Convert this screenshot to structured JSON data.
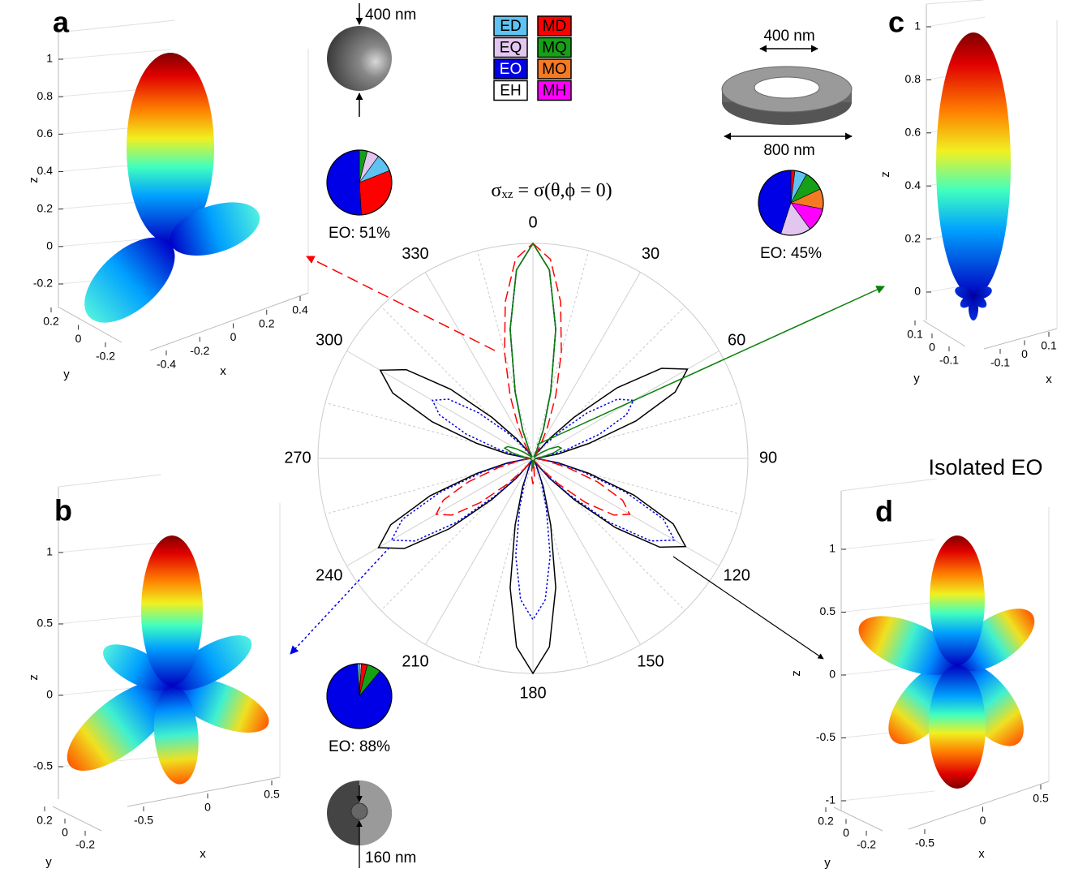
{
  "chart_data": [
    {
      "type": "polar",
      "title_symbol": "σ",
      "title_subscript": "xz",
      "title_rest": " = σ(θ,ϕ = 0)",
      "rlim": [
        0,
        1
      ],
      "thetaticks": [
        0,
        30,
        60,
        90,
        120,
        150,
        180,
        210,
        240,
        270,
        300,
        330
      ],
      "theta": [
        0,
        5,
        10,
        15,
        20,
        25,
        30,
        35,
        40,
        45,
        50,
        55,
        60,
        65,
        70,
        75,
        80,
        85,
        90,
        95,
        100,
        105,
        110,
        115,
        120,
        125,
        130,
        135,
        140,
        145,
        150,
        155,
        160,
        165,
        170,
        175,
        180,
        185,
        190,
        195,
        200,
        205,
        210,
        215,
        220,
        225,
        230,
        235,
        240,
        245,
        250,
        255,
        260,
        265,
        270,
        275,
        280,
        285,
        290,
        295,
        300,
        305,
        310,
        315,
        320,
        325,
        330,
        335,
        340,
        345,
        350,
        355
      ],
      "series": [
        {
          "color": "#000000",
          "dash": "solid",
          "values": [
            1,
            0.88,
            0.61,
            0.32,
            0.14,
            0.04,
            0.01,
            0.03,
            0.12,
            0.27,
            0.51,
            0.73,
            0.83,
            0.73,
            0.51,
            0.27,
            0.12,
            0.03,
            0.01,
            0.03,
            0.12,
            0.27,
            0.5,
            0.72,
            0.82,
            0.72,
            0.5,
            0.27,
            0.12,
            0.04,
            0.01,
            0.04,
            0.14,
            0.32,
            0.61,
            0.88,
            1,
            0.88,
            0.61,
            0.32,
            0.14,
            0.04,
            0.01,
            0.03,
            0.12,
            0.27,
            0.51,
            0.73,
            0.83,
            0.73,
            0.51,
            0.27,
            0.12,
            0.03,
            0.01,
            0.03,
            0.12,
            0.27,
            0.5,
            0.72,
            0.82,
            0.72,
            0.5,
            0.27,
            0.12,
            0.04,
            0.01,
            0.04,
            0.14,
            0.32,
            0.61,
            0.88
          ]
        },
        {
          "color": "#0000e6",
          "dash": "dotted",
          "values": [
            1,
            0.88,
            0.61,
            0.32,
            0.14,
            0.04,
            0.01,
            0.02,
            0.08,
            0.17,
            0.33,
            0.48,
            0.54,
            0.48,
            0.33,
            0.17,
            0.08,
            0.02,
            0.01,
            0.03,
            0.11,
            0.24,
            0.46,
            0.67,
            0.76,
            0.67,
            0.46,
            0.24,
            0.11,
            0.03,
            0.01,
            0.03,
            0.11,
            0.24,
            0.46,
            0.66,
            0.75,
            0.66,
            0.46,
            0.24,
            0.11,
            0.03,
            0.01,
            0.03,
            0.11,
            0.24,
            0.46,
            0.67,
            0.76,
            0.67,
            0.46,
            0.24,
            0.11,
            0.03,
            0.01,
            0.02,
            0.08,
            0.17,
            0.33,
            0.48,
            0.54,
            0.48,
            0.33,
            0.17,
            0.08,
            0.02,
            0.01,
            0.04,
            0.14,
            0.32,
            0.61,
            0.88
          ]
        },
        {
          "color": "#ff0000",
          "dash": "dashed",
          "values": [
            1,
            0.93,
            0.74,
            0.51,
            0.31,
            0.16,
            0.07,
            0.03,
            0.01,
            0.01,
            0.01,
            0.01,
            0.01,
            0.01,
            0.01,
            0.01,
            0.01,
            0.01,
            0.01,
            0.02,
            0.07,
            0.17,
            0.32,
            0.46,
            0.52,
            0.46,
            0.32,
            0.17,
            0.07,
            0.02,
            0.01,
            0.01,
            0.01,
            0.01,
            0.02,
            0.08,
            0.12,
            0.08,
            0.02,
            0.01,
            0.01,
            0.01,
            0.01,
            0.02,
            0.07,
            0.17,
            0.32,
            0.46,
            0.52,
            0.46,
            0.32,
            0.17,
            0.07,
            0.02,
            0.01,
            0.01,
            0.01,
            0.01,
            0.01,
            0.01,
            0.01,
            0.01,
            0.01,
            0.01,
            0.01,
            0.03,
            0.07,
            0.16,
            0.31,
            0.51,
            0.74,
            0.93
          ]
        },
        {
          "color": "#0a800a",
          "dash": "solid",
          "values": [
            1,
            0.88,
            0.61,
            0.32,
            0.14,
            0.04,
            0.01,
            0.01,
            0.01,
            0.01,
            0.02,
            0.05,
            0.09,
            0.13,
            0.14,
            0.1,
            0.05,
            0.02,
            0.01,
            0.01,
            0.01,
            0.01,
            0.01,
            0.01,
            0.01,
            0.01,
            0.01,
            0.01,
            0.01,
            0.01,
            0.01,
            0.01,
            0.01,
            0.01,
            0.01,
            0.03,
            0.04,
            0.03,
            0.01,
            0.01,
            0.01,
            0.01,
            0.01,
            0.01,
            0.01,
            0.01,
            0.01,
            0.01,
            0.01,
            0.01,
            0.01,
            0.01,
            0.01,
            0.01,
            0.01,
            0.02,
            0.05,
            0.1,
            0.14,
            0.13,
            0.09,
            0.05,
            0.02,
            0.01,
            0.01,
            0.01,
            0.01,
            0.04,
            0.14,
            0.32,
            0.61,
            0.88
          ]
        }
      ]
    },
    {
      "type": "pie",
      "label": "EO: 51%",
      "categories": [
        "MQ",
        "EQ",
        "ED",
        "MD",
        "EO"
      ],
      "values": [
        4,
        6,
        9,
        30,
        51
      ]
    },
    {
      "type": "pie",
      "label": "EO: 88%",
      "categories": [
        "EQ",
        "MD",
        "MQ",
        "EO",
        "ED"
      ],
      "values": [
        1,
        3,
        7,
        88,
        1
      ]
    },
    {
      "type": "pie",
      "label": "EO: 45%",
      "categories": [
        "MD",
        "ED",
        "MQ",
        "MO",
        "MH",
        "EQ",
        "EO"
      ],
      "values": [
        2,
        6,
        10,
        10,
        12,
        15,
        45
      ]
    }
  ],
  "legend": [
    {
      "name": "ED",
      "color": "#5ec3f2"
    },
    {
      "name": "MD",
      "color": "#ff0000"
    },
    {
      "name": "EQ",
      "color": "#e2c6f0"
    },
    {
      "name": "MQ",
      "color": "#16a016"
    },
    {
      "name": "EO",
      "color": "#0000e6"
    },
    {
      "name": "MO",
      "color": "#f57a24"
    },
    {
      "name": "EH",
      "color": "#ffffff"
    },
    {
      "name": "MH",
      "color": "#ff00ff"
    }
  ],
  "annotations": {
    "sphere": "400 nm",
    "ring_inner": "400 nm",
    "ring_outer": "800 nm",
    "core": "160 nm"
  },
  "panels": [
    {
      "label": "a",
      "zticks": [
        -0.2,
        0,
        0.2,
        0.4,
        0.6,
        0.8,
        1
      ],
      "xticks": [
        -0.4,
        -0.2,
        0,
        0.2,
        0.4
      ],
      "yticks": [
        -0.2,
        0,
        0.2
      ],
      "xlabel": "x",
      "ylabel": "y",
      "zlabel": "z"
    },
    {
      "label": "b",
      "zticks": [
        -0.5,
        0,
        0.5,
        1
      ],
      "xticks": [
        -0.5,
        0,
        0.5
      ],
      "yticks": [
        -0.2,
        0,
        0.2
      ],
      "xlabel": "x",
      "ylabel": "y",
      "zlabel": "z"
    },
    {
      "label": "c",
      "zticks": [
        0,
        0.2,
        0.4,
        0.6,
        0.8,
        1
      ],
      "xticks": [
        -0.1,
        0,
        0.1
      ],
      "yticks": [
        -0.1,
        0,
        0.1
      ],
      "xlabel": "x",
      "ylabel": "y",
      "zlabel": "z"
    },
    {
      "label": "d",
      "note": "Isolated EO",
      "zticks": [
        -1,
        -0.5,
        0,
        0.5,
        1
      ],
      "xticks": [
        -0.5,
        0,
        0.5
      ],
      "yticks": [
        -0.2,
        0,
        0.2
      ],
      "xlabel": "x",
      "ylabel": "y",
      "zlabel": "z"
    }
  ]
}
